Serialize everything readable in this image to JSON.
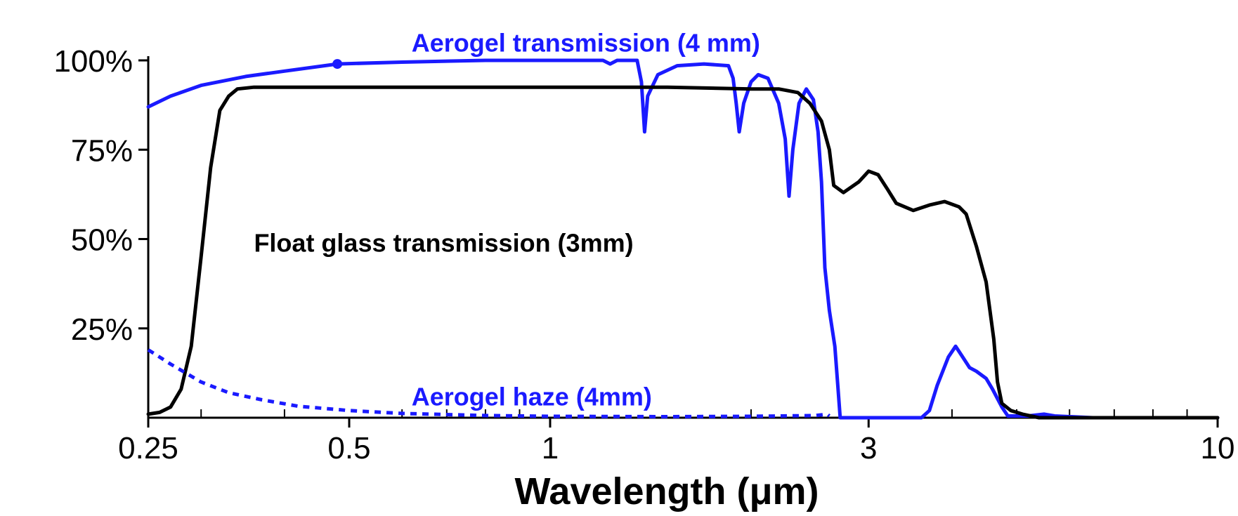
{
  "chart_data": {
    "type": "line",
    "title": "",
    "xlabel": "Wavelength (μm)",
    "ylabel": "",
    "x_scale": "log",
    "xlim": [
      0.25,
      10
    ],
    "ylim": [
      0,
      100
    ],
    "x_ticks": [
      {
        "value": 0.25,
        "label": "0.25"
      },
      {
        "value": 0.5,
        "label": "0.5"
      },
      {
        "value": 1,
        "label": "1"
      },
      {
        "value": 3,
        "label": "3"
      },
      {
        "value": 10,
        "label": "10"
      }
    ],
    "x_minor_ticks": [
      0.3,
      0.4,
      0.6,
      0.7,
      0.8,
      0.9,
      2,
      4,
      5,
      6,
      7,
      8,
      9
    ],
    "y_ticks": [
      {
        "value": 25,
        "label": "25%"
      },
      {
        "value": 50,
        "label": "50%"
      },
      {
        "value": 75,
        "label": "75%"
      },
      {
        "value": 100,
        "label": "100%"
      }
    ],
    "grid": false,
    "legend": "none",
    "series": [
      {
        "name": "Aerogel transmission (4 mm)",
        "color": "#1a1aff",
        "style": "solid",
        "label_anchor": {
          "x": 0.62,
          "y": 105
        },
        "points": [
          [
            0.25,
            87
          ],
          [
            0.27,
            90
          ],
          [
            0.3,
            93
          ],
          [
            0.35,
            95.5
          ],
          [
            0.4,
            97
          ],
          [
            0.48,
            99
          ],
          [
            0.6,
            99.5
          ],
          [
            0.8,
            100
          ],
          [
            1.0,
            100
          ],
          [
            1.2,
            100
          ],
          [
            1.23,
            99
          ],
          [
            1.26,
            100
          ],
          [
            1.35,
            100
          ],
          [
            1.37,
            94
          ],
          [
            1.385,
            80
          ],
          [
            1.4,
            90
          ],
          [
            1.45,
            96
          ],
          [
            1.55,
            98.5
          ],
          [
            1.7,
            99
          ],
          [
            1.85,
            98.5
          ],
          [
            1.88,
            95
          ],
          [
            1.9,
            88
          ],
          [
            1.92,
            80
          ],
          [
            1.95,
            88
          ],
          [
            2.0,
            94
          ],
          [
            2.05,
            96
          ],
          [
            2.12,
            95
          ],
          [
            2.2,
            88
          ],
          [
            2.25,
            78
          ],
          [
            2.28,
            62
          ],
          [
            2.31,
            75
          ],
          [
            2.36,
            88
          ],
          [
            2.42,
            92
          ],
          [
            2.48,
            89
          ],
          [
            2.52,
            80
          ],
          [
            2.55,
            66
          ],
          [
            2.58,
            42
          ],
          [
            2.62,
            30
          ],
          [
            2.67,
            20
          ],
          [
            2.7,
            8
          ],
          [
            2.72,
            0
          ],
          [
            3.6,
            0
          ],
          [
            3.7,
            2
          ],
          [
            3.8,
            9
          ],
          [
            3.95,
            17
          ],
          [
            4.05,
            20
          ],
          [
            4.15,
            17
          ],
          [
            4.25,
            14
          ],
          [
            4.35,
            13
          ],
          [
            4.5,
            11
          ],
          [
            4.6,
            8
          ],
          [
            4.75,
            3
          ],
          [
            4.85,
            0.5
          ],
          [
            5.2,
            0.5
          ],
          [
            5.5,
            1
          ],
          [
            5.7,
            0.5
          ],
          [
            6.5,
            0
          ],
          [
            10,
            0
          ]
        ]
      },
      {
        "name": "Float glass transmission (3mm)",
        "color": "#000000",
        "style": "solid",
        "label_anchor": {
          "x": 0.36,
          "y": 49
        },
        "points": [
          [
            0.25,
            1
          ],
          [
            0.26,
            1.5
          ],
          [
            0.27,
            3
          ],
          [
            0.28,
            8
          ],
          [
            0.29,
            20
          ],
          [
            0.3,
            45
          ],
          [
            0.31,
            70
          ],
          [
            0.32,
            86
          ],
          [
            0.33,
            90
          ],
          [
            0.34,
            92
          ],
          [
            0.36,
            92.5
          ],
          [
            0.5,
            92.5
          ],
          [
            1.0,
            92.5
          ],
          [
            1.5,
            92.5
          ],
          [
            2.0,
            92
          ],
          [
            2.2,
            92
          ],
          [
            2.35,
            91
          ],
          [
            2.45,
            88
          ],
          [
            2.55,
            83
          ],
          [
            2.62,
            75
          ],
          [
            2.66,
            65
          ],
          [
            2.75,
            63
          ],
          [
            2.9,
            66
          ],
          [
            3.0,
            69
          ],
          [
            3.1,
            68
          ],
          [
            3.2,
            64
          ],
          [
            3.3,
            60
          ],
          [
            3.5,
            58
          ],
          [
            3.7,
            59.5
          ],
          [
            3.9,
            60.5
          ],
          [
            4.1,
            59
          ],
          [
            4.2,
            57
          ],
          [
            4.35,
            48
          ],
          [
            4.5,
            38
          ],
          [
            4.62,
            22
          ],
          [
            4.68,
            10
          ],
          [
            4.75,
            4
          ],
          [
            4.9,
            2
          ],
          [
            5.1,
            1
          ],
          [
            5.4,
            0
          ],
          [
            10,
            0
          ]
        ]
      },
      {
        "name": "Aerogel haze (4mm)",
        "color": "#1a1aff",
        "style": "dashed",
        "label_anchor": {
          "x": 0.62,
          "y": 6
        },
        "points": [
          [
            0.25,
            19
          ],
          [
            0.27,
            15
          ],
          [
            0.3,
            10
          ],
          [
            0.33,
            7
          ],
          [
            0.37,
            5
          ],
          [
            0.42,
            3.2
          ],
          [
            0.5,
            2
          ],
          [
            0.6,
            1.2
          ],
          [
            0.8,
            0.6
          ],
          [
            1.0,
            0.4
          ],
          [
            1.5,
            0.3
          ],
          [
            2.0,
            0.4
          ],
          [
            2.5,
            0.6
          ],
          [
            2.6,
            1
          ],
          [
            2.62,
            0.5
          ]
        ]
      }
    ]
  }
}
